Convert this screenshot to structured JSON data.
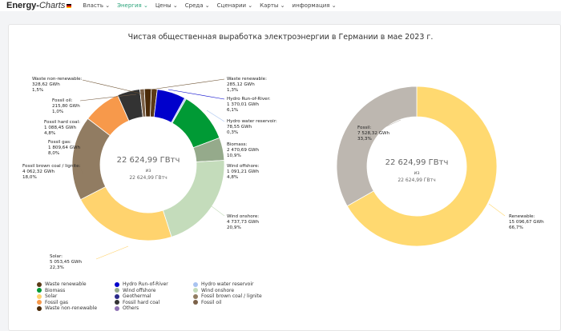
{
  "nav": {
    "logo_main": "Energy-",
    "logo_italic": "Charts",
    "items": [
      "Власть",
      "Энергия",
      "Цены",
      "Среда",
      "Сценарии",
      "Карты",
      "информация"
    ],
    "active": 1
  },
  "chart_data": [
    {
      "type": "pie",
      "title": "Чистая общественная выработка электроэнергии в Германии в мае 2023 г.",
      "center_total": "22 624,99 ГВтч",
      "center_of": "из",
      "center_total2": "22 624,99 ГВтч",
      "slices": [
        {
          "name": "Waste renewable",
          "label": "Waste renewable:",
          "value_text": "285,12 GWh",
          "pct_text": "1,3%",
          "value": 285.12,
          "color": "#5b3a16"
        },
        {
          "name": "Hydro Run-of-River",
          "label": "Hydro Run-of-River:",
          "value_text": "1 370,01 GWh",
          "pct_text": "6,1%",
          "value": 1370.01,
          "color": "#0000cc"
        },
        {
          "name": "Hydro water reservoir",
          "label": "Hydro water reservoir:",
          "value_text": "78,55 GWh",
          "pct_text": "0,3%",
          "value": 78.55,
          "color": "#a9c3f0"
        },
        {
          "name": "Biomass",
          "label": "Biomass:",
          "value_text": "2 470,69 GWh",
          "pct_text": "10,9%",
          "value": 2470.69,
          "color": "#009a35"
        },
        {
          "name": "Wind offshore",
          "label": "Wind offshore:",
          "value_text": "1 091,21 GWh",
          "pct_text": "4,8%",
          "value": 1091.21,
          "color": "#95aa8b"
        },
        {
          "name": "Wind onshore",
          "label": "Wind onshore:",
          "value_text": "4 737,73 GWh",
          "pct_text": "20,9%",
          "value": 4737.73,
          "color": "#c4dcbb"
        },
        {
          "name": "Solar",
          "label": "Solar:",
          "value_text": "5 053,45 GWh",
          "pct_text": "22,3%",
          "value": 5053.45,
          "color": "#ffd36e"
        },
        {
          "name": "Fossil brown coal / lignite",
          "label": "Fossil brown coal / lignite:",
          "value_text": "4 062,32 GWh",
          "pct_text": "18,0%",
          "value": 4062.32,
          "color": "#917c62"
        },
        {
          "name": "Fossil gas",
          "label": "Fossil gas:",
          "value_text": "1 809,64 GWh",
          "pct_text": "8,0%",
          "value": 1809.64,
          "color": "#f7994b"
        },
        {
          "name": "Fossil hard coal",
          "label": "Fossil hard coal:",
          "value_text": "1 088,45 GWh",
          "pct_text": "4,8%",
          "value": 1088.45,
          "color": "#333333"
        },
        {
          "name": "Fossil oil",
          "label": "Fossil oil:",
          "value_text": "215,80 GWh",
          "pct_text": "1,0%",
          "value": 215.8,
          "color": "#7b6148"
        },
        {
          "name": "Waste non-renewable",
          "label": "Waste non-renewable:",
          "value_text": "328,62 GWh",
          "pct_text": "1,5%",
          "value": 328.62,
          "color": "#4a2a08"
        }
      ]
    },
    {
      "type": "pie",
      "center_total": "22 624,99 ГВтч",
      "center_of": "из",
      "center_total2": "22 624,99 ГВтч",
      "slices": [
        {
          "name": "Renewable",
          "label": "Renewable:",
          "value_text": "15 096,67 GWh",
          "pct_text": "66,7%",
          "value": 15096.67,
          "color": "#ffd970"
        },
        {
          "name": "Fossil",
          "label": "Fossil:",
          "value_text": "7 528,32 GWh",
          "pct_text": "33,3%",
          "value": 7528.32,
          "color": "#bdb7b0"
        }
      ]
    }
  ],
  "legend": [
    {
      "label": "Waste renewable",
      "color": "#5b3a16"
    },
    {
      "label": "Hydro Run-of-River",
      "color": "#0000cc"
    },
    {
      "label": "Hydro water reservoir",
      "color": "#a9c3f0"
    },
    {
      "label": "Biomass",
      "color": "#009a35"
    },
    {
      "label": "Wind offshore",
      "color": "#95aa8b"
    },
    {
      "label": "Wind onshore",
      "color": "#c4dcbb"
    },
    {
      "label": "Solar",
      "color": "#ffd36e"
    },
    {
      "label": "Geothermal",
      "color": "#2a2a8a"
    },
    {
      "label": "Fossil brown coal / lignite",
      "color": "#917c62"
    },
    {
      "label": "Fossil gas",
      "color": "#f7994b"
    },
    {
      "label": "Fossil hard coal",
      "color": "#333333"
    },
    {
      "label": "Fossil oil",
      "color": "#7b6148"
    },
    {
      "label": "Waste non-renewable",
      "color": "#4a2a08"
    },
    {
      "label": "Others",
      "color": "#8f72b4"
    }
  ]
}
